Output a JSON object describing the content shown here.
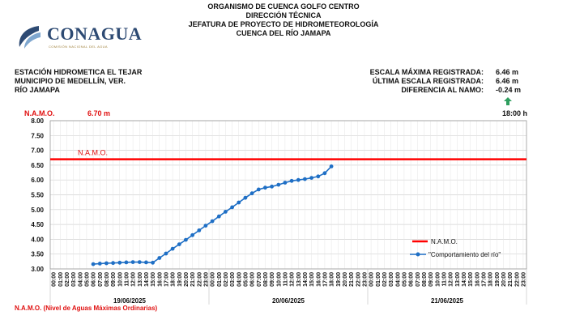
{
  "logo": {
    "name": "CONAGUA",
    "subtitle": "COMISIÓN NACIONAL DEL AGUA"
  },
  "header": {
    "line1": "ORGANISMO DE CUENCA GOLFO CENTRO",
    "line2": "DIRECCIÓN TÉCNICA",
    "line3": "JEFATURA DE PROYECTO DE HIDROMETEOROLOGÍA",
    "line4": "CUENCA DEL RÍO JAMAPA"
  },
  "station": {
    "name": "ESTACIÓN HIDROMETICA EL TEJAR",
    "municipality": "MUNICIPIO DE MEDELLÍN, VER.",
    "river": "RÍO JAMAPA"
  },
  "stats": {
    "max_label": "ESCALA MÁXIMA REGISTRADA:",
    "max_value": "6.46 m",
    "last_label": "ÚLTIMA ESCALA REGISTRADA:",
    "last_value": "6.46 m",
    "diff_label": "DIFERENCIA AL NAMO:",
    "diff_value": "-0.24 m",
    "trend_icon": "up-arrow-icon",
    "time": "18:00 h"
  },
  "namo": {
    "label": "N.A.M.O.",
    "value": "6.70 m",
    "footnote": "N.A.M.O. (Nivel de Aguas Máximas Ordinarias)"
  },
  "colors": {
    "namo_line": "#ff0000",
    "series": "#1f6fc5",
    "logo": "#2d4a73",
    "arrow": "#2e9e5e"
  },
  "chart_data": {
    "type": "line",
    "ylim": [
      3.0,
      8.0
    ],
    "yticks": [
      "8.00",
      "7.50",
      "7.00",
      "6.50",
      "6.00",
      "5.50",
      "5.00",
      "4.50",
      "4.00",
      "3.50",
      "3.00"
    ],
    "hours": [
      "00:00",
      "01:00",
      "02:00",
      "03:00",
      "04:00",
      "05:00",
      "06:00",
      "07:00",
      "08:00",
      "09:00",
      "10:00",
      "11:00",
      "12:00",
      "13:00",
      "14:00",
      "15:00",
      "16:00",
      "17:00",
      "18:00",
      "19:00",
      "20:00",
      "21:00",
      "22:00",
      "23:00"
    ],
    "dates": [
      "19/06/2025",
      "20/06/2025",
      "21/06/2025"
    ],
    "namo_level": 6.7,
    "namo_chart_label": "N.A.M.O.",
    "legend": [
      "N.A.M.O.",
      "\"Comportamiento del río\""
    ],
    "series": [
      {
        "name": "\"Comportamiento del río\"",
        "x": [
          6,
          7,
          8,
          9,
          10,
          11,
          12,
          13,
          14,
          15,
          16,
          17,
          18,
          19,
          20,
          21,
          22,
          23,
          24,
          25,
          26,
          27,
          28,
          29,
          30,
          31,
          32,
          33,
          34,
          35,
          36,
          37,
          38,
          39,
          40,
          41,
          42
        ],
        "y": [
          3.16,
          3.18,
          3.19,
          3.2,
          3.21,
          3.22,
          3.23,
          3.23,
          3.22,
          3.21,
          3.37,
          3.52,
          3.68,
          3.83,
          3.98,
          4.14,
          4.3,
          4.46,
          4.61,
          4.77,
          4.93,
          5.08,
          5.24,
          5.4,
          5.55,
          5.68,
          5.74,
          5.78,
          5.84,
          5.91,
          5.97,
          6.0,
          6.03,
          6.07,
          6.12,
          6.23,
          6.46
        ]
      }
    ]
  }
}
